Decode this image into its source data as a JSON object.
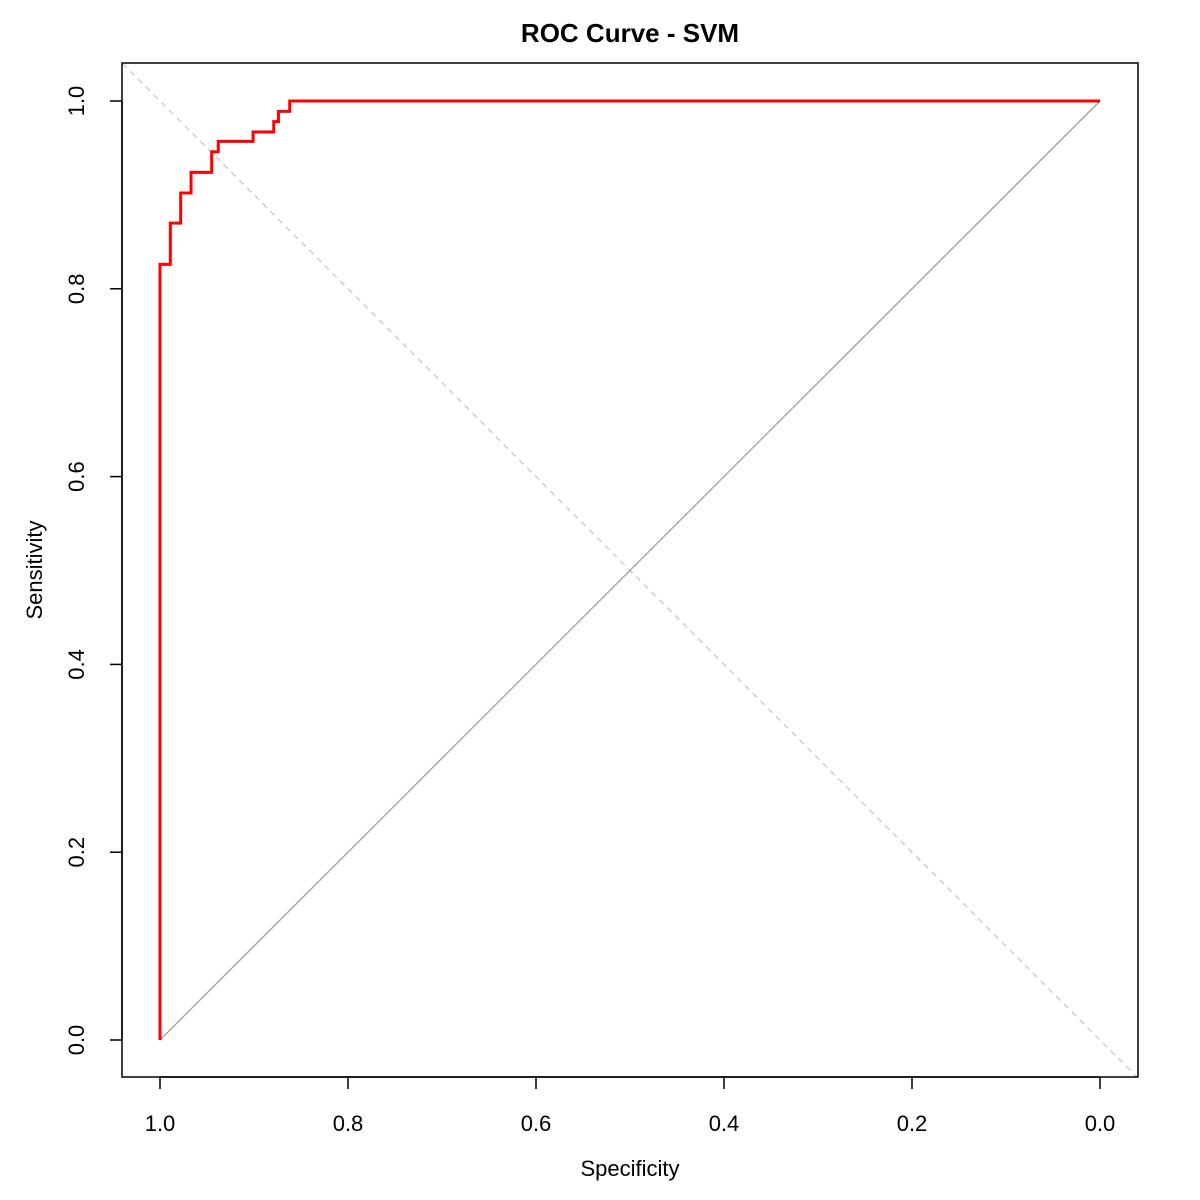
{
  "chart_data": {
    "type": "line",
    "title": "ROC Curve - SVM",
    "xlabel": "Specificity",
    "ylabel": "Sensitivity",
    "x_reversed": true,
    "xlim": [
      1.0,
      0.0
    ],
    "ylim": [
      0.0,
      1.0
    ],
    "x_ticks": [
      "1.0",
      "0.8",
      "0.6",
      "0.4",
      "0.2",
      "0.0"
    ],
    "y_ticks": [
      "0.0",
      "0.2",
      "0.4",
      "0.6",
      "0.8",
      "1.0"
    ],
    "grid": false,
    "legend": "none",
    "series": [
      {
        "color": "#ff0000",
        "style": "solid",
        "points": [
          [
            1.0,
            0.0
          ],
          [
            1.0,
            0.826
          ],
          [
            0.989,
            0.826
          ],
          [
            0.989,
            0.87
          ],
          [
            0.978,
            0.87
          ],
          [
            0.978,
            0.902
          ],
          [
            0.967,
            0.902
          ],
          [
            0.967,
            0.924
          ],
          [
            0.945,
            0.924
          ],
          [
            0.945,
            0.946
          ],
          [
            0.938,
            0.946
          ],
          [
            0.938,
            0.957
          ],
          [
            0.901,
            0.957
          ],
          [
            0.901,
            0.967
          ],
          [
            0.879,
            0.967
          ],
          [
            0.879,
            0.978
          ],
          [
            0.874,
            0.978
          ],
          [
            0.874,
            0.989
          ],
          [
            0.862,
            0.989
          ],
          [
            0.862,
            1.0
          ],
          [
            0.0,
            1.0
          ]
        ]
      },
      {
        "color": "#9e9e9e",
        "style": "solid",
        "points": [
          [
            1.0,
            0.0
          ],
          [
            0.0,
            1.0
          ]
        ]
      },
      {
        "color": "#c8c8c8",
        "style": "dashed",
        "points": [
          [
            1.04,
            1.04
          ],
          [
            -0.04,
            -0.04
          ]
        ]
      }
    ]
  }
}
